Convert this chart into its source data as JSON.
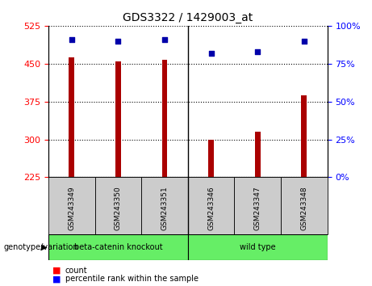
{
  "title": "GDS3322 / 1429003_at",
  "samples": [
    "GSM243349",
    "GSM243350",
    "GSM243351",
    "GSM243346",
    "GSM243347",
    "GSM243348"
  ],
  "counts": [
    463,
    455,
    457,
    300,
    315,
    388
  ],
  "percentiles": [
    91,
    90,
    91,
    82,
    83,
    90
  ],
  "ylim_left": [
    225,
    525
  ],
  "ylim_right": [
    0,
    100
  ],
  "yticks_left": [
    225,
    300,
    375,
    450,
    525
  ],
  "yticks_right": [
    0,
    25,
    50,
    75,
    100
  ],
  "bar_color": "#AA0000",
  "dot_color": "#0000AA",
  "bar_bottom": 225,
  "group1_label": "beta-catenin knockout",
  "group2_label": "wild type",
  "group_color": "#66EE66",
  "group_label_text": "genotype/variation",
  "legend_count_label": "count",
  "legend_percentile_label": "percentile rank within the sample",
  "tick_area_color": "#CCCCCC",
  "bar_width": 0.12
}
